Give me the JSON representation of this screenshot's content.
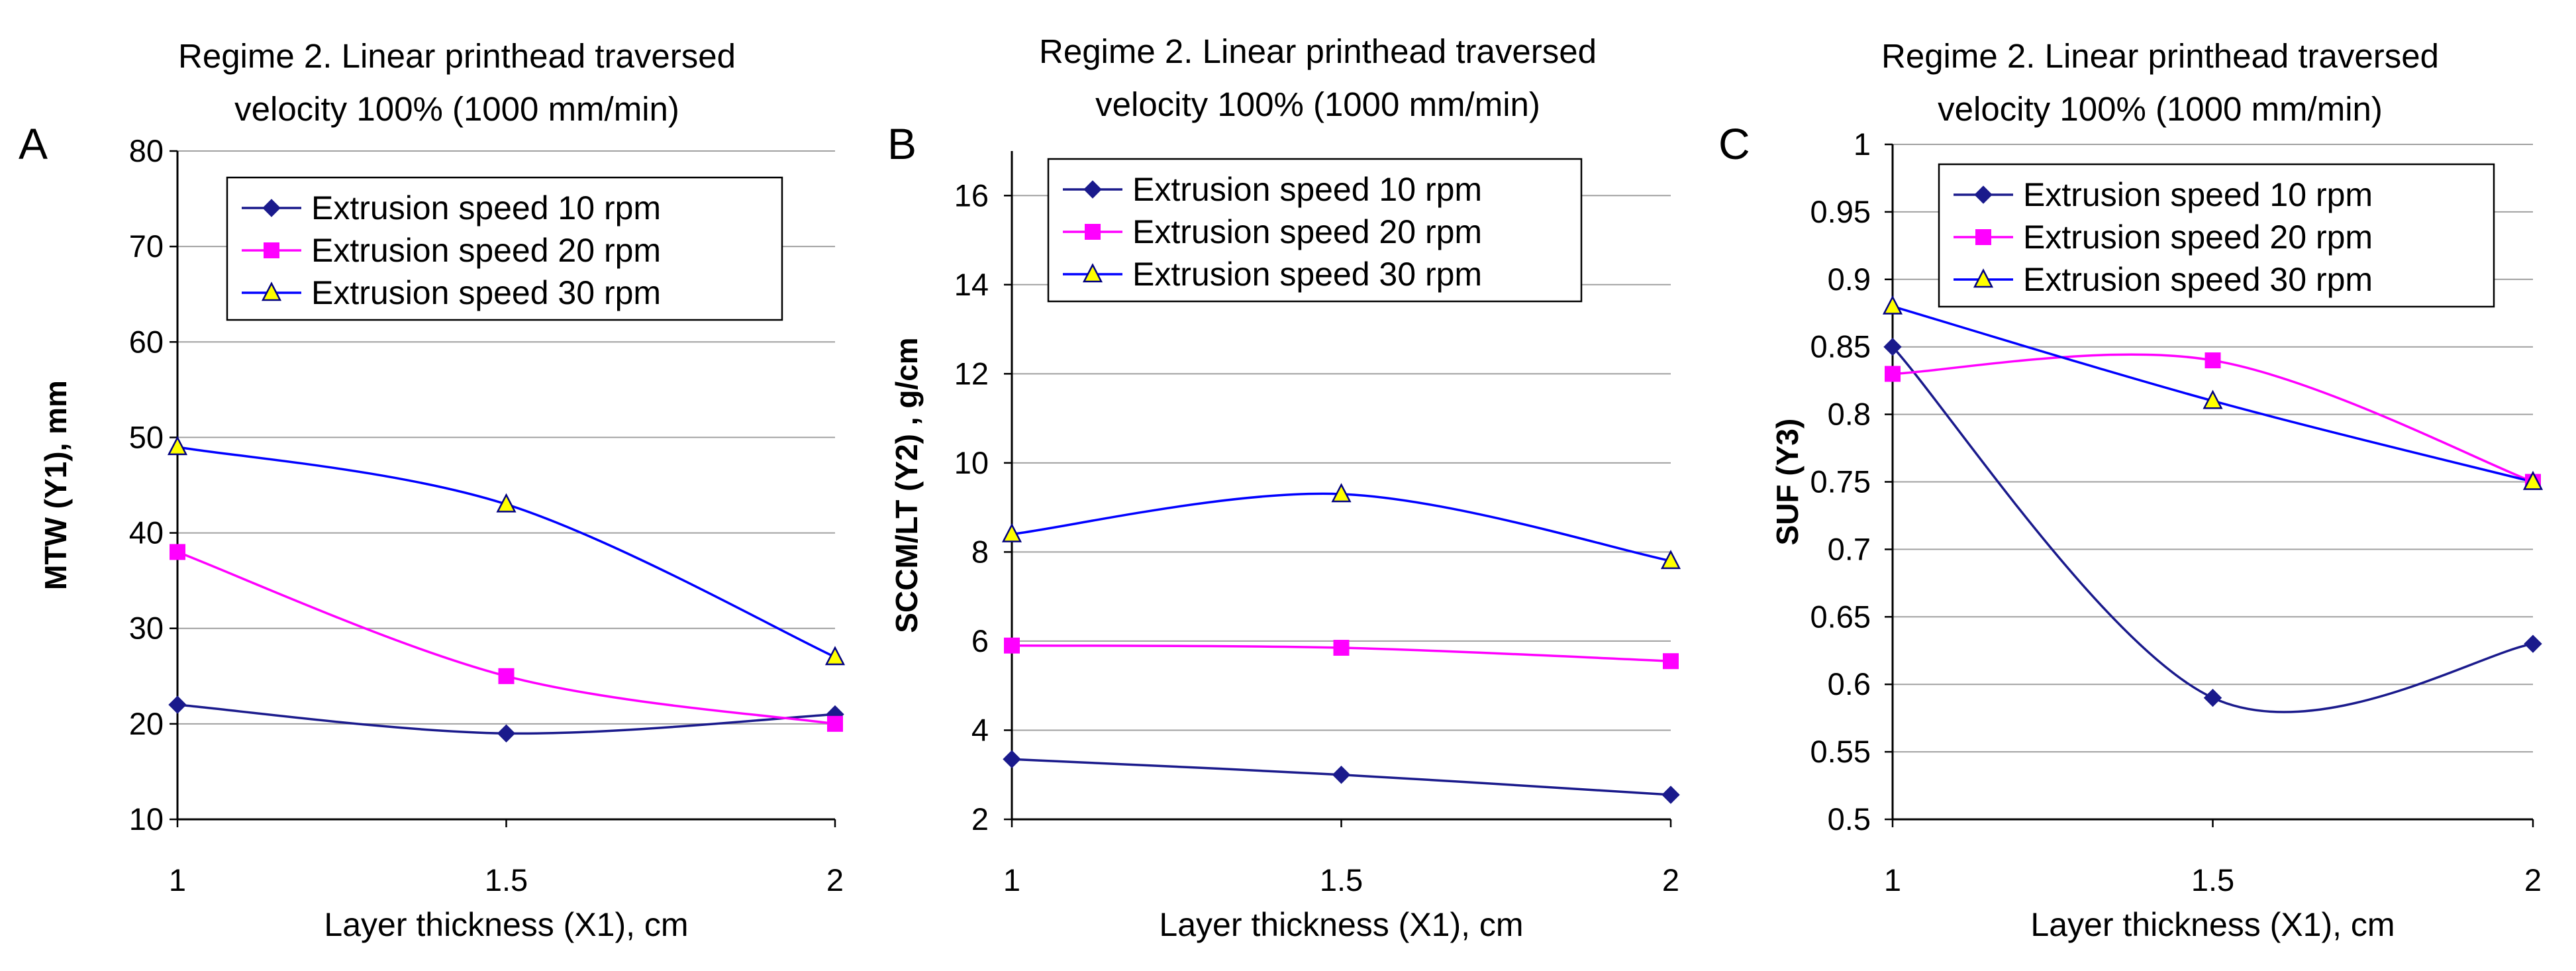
{
  "chart_data": [
    {
      "type": "line",
      "letter": "A",
      "title_lines": [
        "Regime 2. Linear printhead traversed",
        "velocity 100% (1000 mm/min)"
      ],
      "xlabel": "Layer thickness (X1), cm",
      "ylabel": "MTW (Y1),  mm",
      "x": [
        1,
        1.5,
        2
      ],
      "xticks": [
        "1",
        "1.5",
        "2"
      ],
      "ylim": [
        10,
        80
      ],
      "yticks": [
        "10",
        "20",
        "30",
        "40",
        "50",
        "60",
        "70",
        "80"
      ],
      "grid": "horizontal",
      "series": [
        {
          "name": "Extrusion speed 10  rpm",
          "color": "#1a1a8c",
          "marker": "diamond",
          "values": [
            22,
            19,
            21
          ]
        },
        {
          "name": "Extrusion speed 20  rpm",
          "color": "#ff00ff",
          "marker": "square",
          "values": [
            38,
            25,
            20
          ]
        },
        {
          "name": "Extrusion speed 30  rpm",
          "color": "#0000ff",
          "marker": "triangle",
          "values": [
            49,
            43,
            27
          ]
        }
      ]
    },
    {
      "type": "line",
      "letter": "B",
      "title_lines": [
        "Regime 2. Linear printhead traversed",
        "velocity 100% (1000 mm/min)"
      ],
      "xlabel": "Layer thickness (X1), cm",
      "ylabel": "SCCM/LT (Y2)  , g/cm",
      "x": [
        1,
        1.5,
        2
      ],
      "xticks": [
        "1",
        "1.5",
        "2"
      ],
      "ylim": [
        2,
        17
      ],
      "yticks": [
        "2",
        "4",
        "6",
        "8",
        "10",
        "12",
        "14",
        "16"
      ],
      "grid": "horizontal",
      "series": [
        {
          "name": "Extrusion speed 10 rpm",
          "color": "#1a1a8c",
          "marker": "diamond",
          "values": [
            3.35,
            3.0,
            2.55
          ]
        },
        {
          "name": "Extrusion speed 20 rpm",
          "color": "#ff00ff",
          "marker": "square",
          "values": [
            5.9,
            5.85,
            5.55
          ]
        },
        {
          "name": "Extrusion speed 30 rpm",
          "color": "#0000ff",
          "marker": "triangle",
          "values": [
            8.4,
            9.3,
            7.8
          ]
        }
      ]
    },
    {
      "type": "line",
      "letter": "C",
      "title_lines": [
        "Regime 2. Linear printhead traversed",
        "velocity 100% (1000 mm/min)"
      ],
      "xlabel": "Layer thickness (X1), cm",
      "ylabel": "SUF (Y3)",
      "x": [
        1,
        1.5,
        2
      ],
      "xticks": [
        "1",
        "1.5",
        "2"
      ],
      "ylim": [
        0.5,
        1
      ],
      "yticks": [
        "0.5",
        "0.55",
        "0.6",
        "0.65",
        "0.7",
        "0.75",
        "0.8",
        "0.85",
        "0.9",
        "0.95",
        "1"
      ],
      "grid": "horizontal",
      "series": [
        {
          "name": "Extrusion speed 10  rpm",
          "color": "#1a1a8c",
          "marker": "diamond",
          "values": [
            0.85,
            0.59,
            0.63
          ]
        },
        {
          "name": "Extrusion speed 20  rpm",
          "color": "#ff00ff",
          "marker": "square",
          "values": [
            0.83,
            0.84,
            0.75
          ]
        },
        {
          "name": "Extrusion speed 30  rpm",
          "color": "#0000ff",
          "marker": "triangle",
          "values": [
            0.88,
            0.81,
            0.75
          ]
        }
      ]
    }
  ]
}
